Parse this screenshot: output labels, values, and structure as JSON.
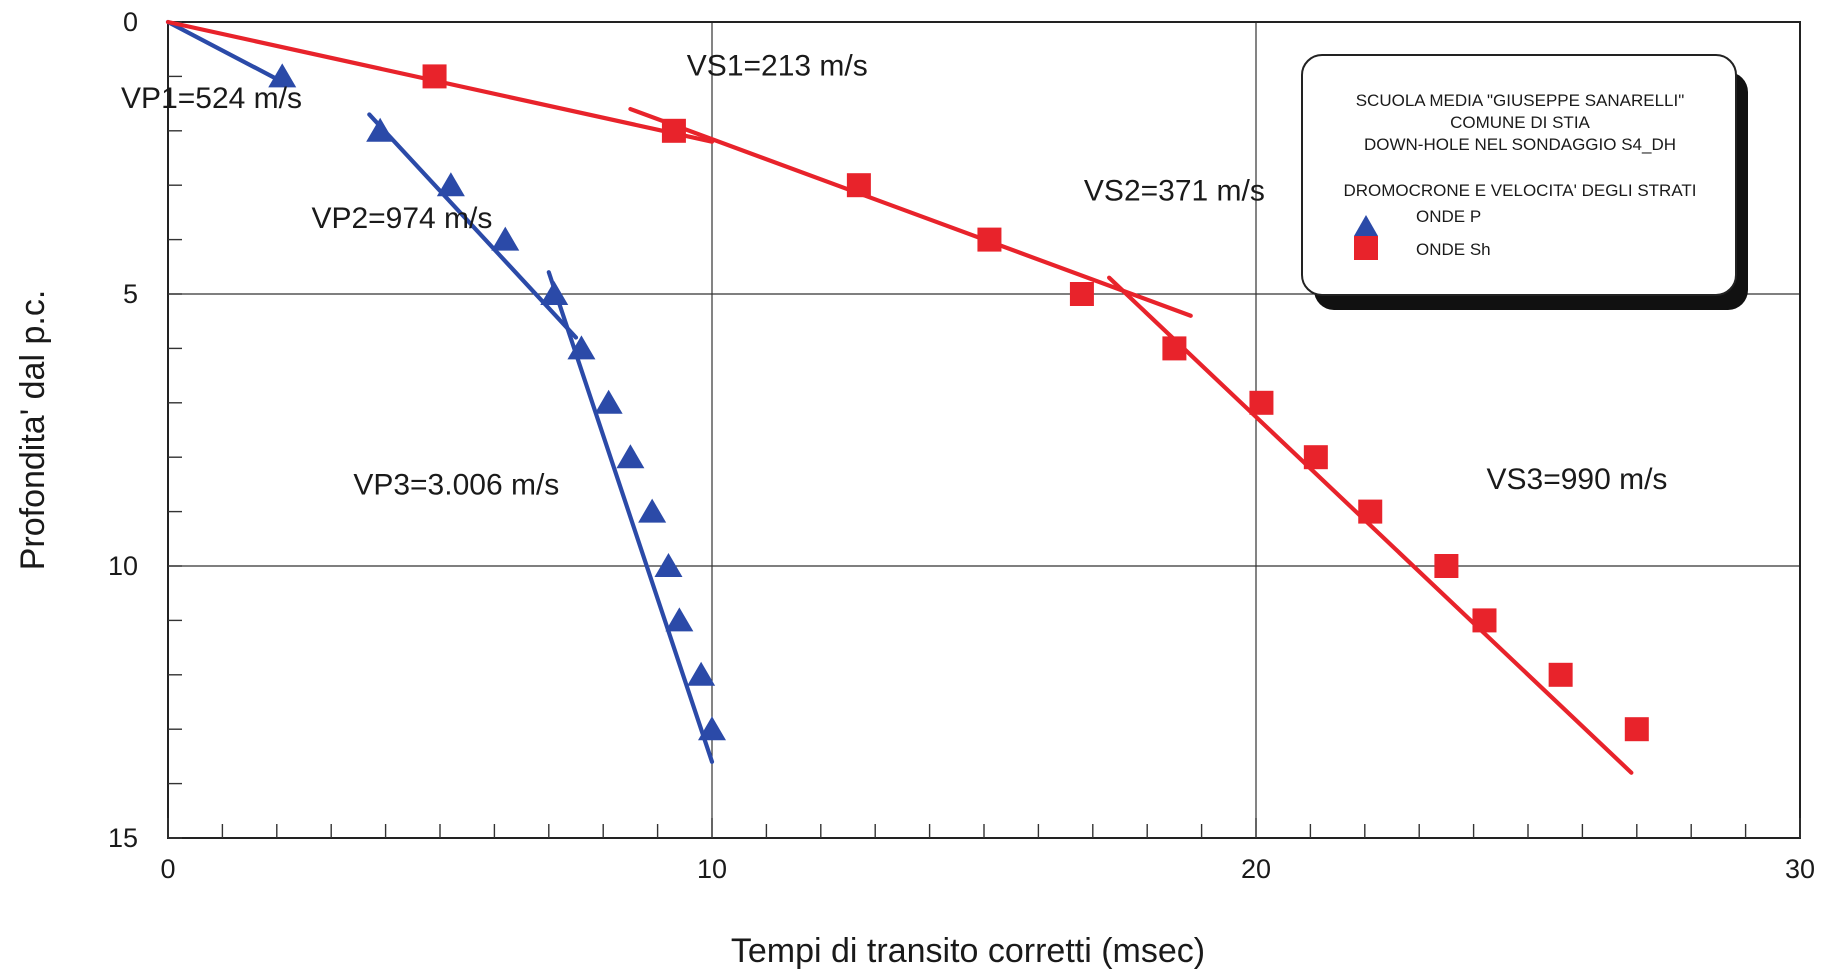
{
  "chart_data": {
    "type": "scatter",
    "xlabel": "Tempi di transito corretti (msec)",
    "ylabel": "Profondita' dal p.c.",
    "xlim": [
      0,
      30
    ],
    "ylim": [
      0,
      15
    ],
    "y_inverted": true,
    "x_ticks": [
      "0",
      "10",
      "20",
      "30"
    ],
    "y_ticks": [
      "0",
      "5",
      "10",
      "15"
    ],
    "grid": true,
    "legend_position": "top-right",
    "legend": {
      "lines": [
        "SCUOLA MEDIA \"GIUSEPPE SANARELLI\"",
        "COMUNE DI STIA",
        "DOWN-HOLE NEL SONDAGGIO S4_DH"
      ],
      "subtitle": "DROMOCRONE E VELOCITA' DEGLI STRATI",
      "entries": [
        {
          "label": "ONDE P",
          "marker": "triangle",
          "color": "#2b4aa8"
        },
        {
          "label": "ONDE Sh",
          "marker": "square",
          "color": "#e8232b"
        }
      ]
    },
    "series": [
      {
        "name": "ONDE P",
        "marker": "triangle",
        "color": "#2b4aa8",
        "points": [
          [
            2.1,
            1
          ],
          [
            3.9,
            2
          ],
          [
            5.2,
            3
          ],
          [
            6.2,
            4
          ],
          [
            7.1,
            5
          ],
          [
            7.6,
            6
          ],
          [
            8.1,
            7
          ],
          [
            8.5,
            8
          ],
          [
            8.9,
            9
          ],
          [
            9.2,
            10
          ],
          [
            9.4,
            11
          ],
          [
            9.8,
            12
          ],
          [
            10.0,
            13
          ]
        ],
        "fit_lines": [
          {
            "x": [
              0.0,
              2.1
            ],
            "y": [
              0.0,
              1.1
            ]
          },
          {
            "x": [
              3.7,
              7.5
            ],
            "y": [
              1.7,
              5.8
            ]
          },
          {
            "x": [
              7.0,
              10.0
            ],
            "y": [
              4.6,
              13.6
            ]
          }
        ]
      },
      {
        "name": "ONDE Sh",
        "marker": "square",
        "color": "#e8232b",
        "points": [
          [
            4.9,
            1
          ],
          [
            9.3,
            2
          ],
          [
            12.7,
            3
          ],
          [
            15.1,
            4
          ],
          [
            16.8,
            5
          ],
          [
            18.5,
            6
          ],
          [
            20.1,
            7
          ],
          [
            21.1,
            8
          ],
          [
            22.1,
            9
          ],
          [
            23.5,
            10
          ],
          [
            24.2,
            11
          ],
          [
            25.6,
            12
          ],
          [
            27.0,
            13
          ]
        ],
        "fit_lines": [
          {
            "x": [
              0.0,
              10.0
            ],
            "y": [
              0.0,
              2.2
            ]
          },
          {
            "x": [
              8.5,
              18.8
            ],
            "y": [
              1.6,
              5.4
            ]
          },
          {
            "x": [
              17.3,
              26.9
            ],
            "y": [
              4.7,
              13.8
            ]
          }
        ]
      }
    ],
    "annotations": [
      {
        "text": "VP1=524 m/s",
        "x": 0.8,
        "y": 1.4
      },
      {
        "text": "VP2=974 m/s",
        "x": 4.3,
        "y": 3.6
      },
      {
        "text": "VP3=3.006 m/s",
        "x": 5.3,
        "y": 8.5
      },
      {
        "text": "VS1=213 m/s",
        "x": 11.2,
        "y": 0.8
      },
      {
        "text": "VS2=371 m/s",
        "x": 18.5,
        "y": 3.1
      },
      {
        "text": "VS3=990 m/s",
        "x": 25.9,
        "y": 8.4
      }
    ]
  }
}
